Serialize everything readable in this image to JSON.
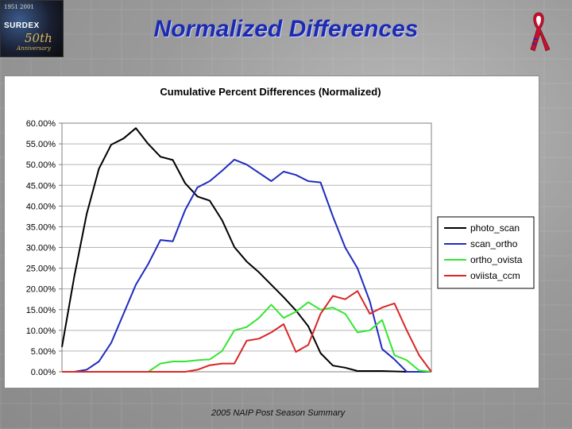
{
  "header": {
    "title": "Normalized Differences",
    "logo": {
      "top_text": "1951 2001",
      "brand": "SURDEX",
      "fifty": "50th",
      "anniversary": "Anniversary"
    }
  },
  "footer": {
    "text": "2005 NAIP Post Season Summary"
  },
  "colors": {
    "title_blue": "#1b2bb0",
    "photo_scan": "#000000",
    "scan_ortho": "#1f2bbf",
    "ortho_ovista": "#33e633",
    "oviista_ccm": "#d92626"
  },
  "chart_data": {
    "type": "line",
    "title": "Cumulative Percent Differences (Normalized)",
    "xlabel": "",
    "ylabel": "",
    "ylim": [
      0,
      60
    ],
    "y_ticks": [
      "0.00%",
      "5.00%",
      "10.00%",
      "15.00%",
      "20.00%",
      "25.00%",
      "30.00%",
      "35.00%",
      "40.00%",
      "45.00%",
      "50.00%",
      "55.00%",
      "60.00%"
    ],
    "grid": true,
    "legend_position": "right",
    "x": [
      0,
      1,
      2,
      3,
      4,
      5,
      6,
      7,
      8,
      9,
      10,
      11,
      12,
      13,
      14,
      15,
      16,
      17,
      18,
      19,
      20,
      21,
      22,
      23,
      24,
      25,
      26,
      27,
      28,
      29,
      30
    ],
    "series": [
      {
        "name": "photo_scan",
        "color": "#000000",
        "values": [
          6.0,
          23.0,
          38.0,
          49.0,
          54.8,
          56.3,
          58.8,
          55.0,
          51.9,
          51.1,
          45.5,
          42.3,
          41.3,
          36.6,
          30.1,
          26.6,
          24.0,
          21.0,
          18.0,
          14.8,
          11.0,
          4.5,
          1.5,
          1.0,
          0.2,
          0.2,
          0.2,
          0.1,
          0.0,
          0.0,
          0.0
        ]
      },
      {
        "name": "scan_ortho",
        "color": "#1f2bbf",
        "values": [
          0.0,
          0.0,
          0.5,
          2.5,
          7.0,
          14.0,
          21.0,
          26.0,
          31.8,
          31.5,
          39.0,
          44.5,
          46.0,
          48.5,
          51.2,
          50.0,
          48.0,
          46.0,
          48.3,
          47.5,
          46.0,
          45.7,
          37.5,
          30.0,
          25.0,
          17.0,
          5.5,
          3.0,
          0.0,
          0.0,
          0.0
        ]
      },
      {
        "name": "ortho_ovista",
        "color": "#33e633",
        "values": [
          0.0,
          0.0,
          0.0,
          0.0,
          0.0,
          0.0,
          0.0,
          0.0,
          2.0,
          2.5,
          2.5,
          2.8,
          3.0,
          5.0,
          10.0,
          10.8,
          13.0,
          16.2,
          13.0,
          14.5,
          16.8,
          15.0,
          15.5,
          14.0,
          9.5,
          10.0,
          12.5,
          4.0,
          2.8,
          0.3,
          0.0
        ]
      },
      {
        "name": "oviista_ccm",
        "color": "#d92626",
        "values": [
          0.0,
          0.0,
          0.0,
          0.0,
          0.0,
          0.0,
          0.0,
          0.0,
          0.0,
          0.0,
          0.0,
          0.5,
          1.6,
          2.0,
          2.0,
          7.5,
          8.0,
          9.5,
          11.5,
          4.8,
          6.5,
          14.0,
          18.3,
          17.5,
          19.5,
          14.0,
          15.5,
          16.5,
          10.0,
          4.0,
          0.0
        ]
      }
    ]
  }
}
